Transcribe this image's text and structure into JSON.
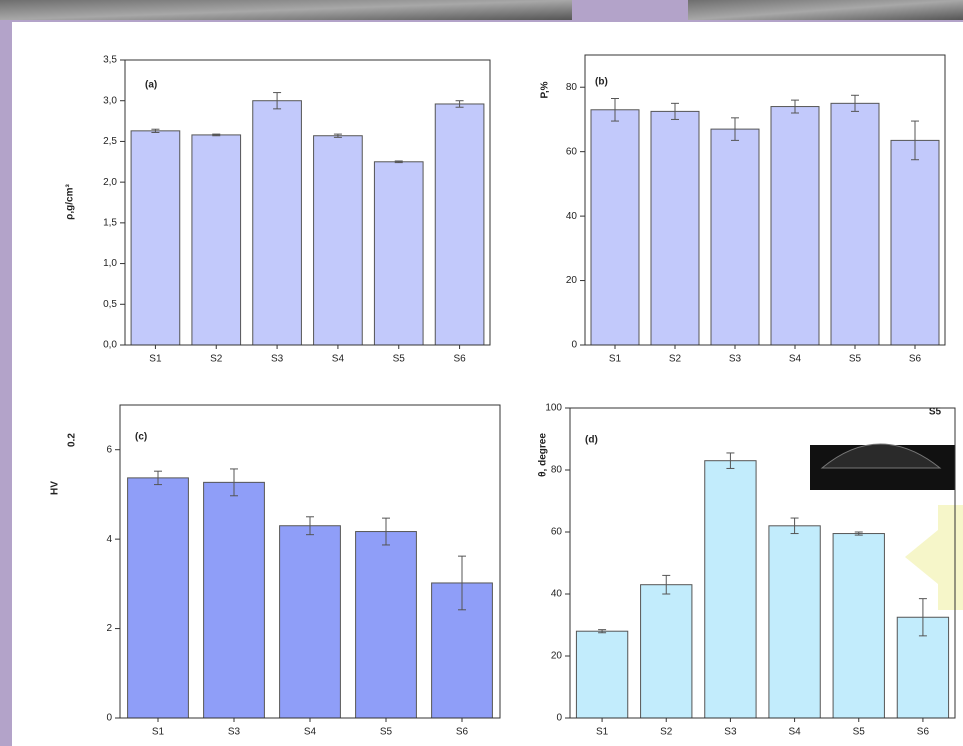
{
  "chart_data": [
    {
      "type": "bar",
      "panel_label": "(a)",
      "ylabel": "ρ,g/cm³",
      "categories": [
        "S1",
        "S2",
        "S3",
        "S4",
        "S5",
        "S6"
      ],
      "values": [
        2.63,
        2.58,
        3.0,
        2.57,
        2.25,
        2.96
      ],
      "errors": [
        0.02,
        0.01,
        0.1,
        0.02,
        0.01,
        0.04
      ],
      "color": "#c2c9fb",
      "ylim": [
        0,
        3.5
      ],
      "yticks": [
        {
          "value": 0,
          "label": "0,0"
        },
        {
          "value": 0.5,
          "label": "0,5"
        },
        {
          "value": 1,
          "label": "1,0"
        },
        {
          "value": 1.5,
          "label": "1,5"
        },
        {
          "value": 2,
          "label": "2,0"
        },
        {
          "value": 2.5,
          "label": "2,5"
        },
        {
          "value": 3,
          "label": "3,0"
        },
        {
          "value": 3.5,
          "label": "3,5"
        }
      ]
    },
    {
      "type": "bar",
      "panel_label": "(b)",
      "ylabel": "P,%",
      "categories": [
        "S1",
        "S2",
        "S3",
        "S4",
        "S5",
        "S6"
      ],
      "values": [
        73,
        72.5,
        67,
        74,
        75,
        63.5
      ],
      "errors": [
        3.5,
        2.5,
        3.5,
        2,
        2.5,
        6
      ],
      "color": "#c2c9fb",
      "ylim": [
        0,
        90
      ],
      "yticks": [
        0,
        20,
        40,
        60,
        80
      ]
    },
    {
      "type": "bar",
      "panel_label": "(c)",
      "ylabel": "HV",
      "ylabel_sub": "0.2",
      "categories": [
        "S1",
        "S3",
        "S4",
        "S5",
        "S6"
      ],
      "values": [
        5.37,
        5.27,
        4.3,
        4.17,
        3.02
      ],
      "errors": [
        0.15,
        0.3,
        0.2,
        0.3,
        0.6
      ],
      "color": "#8f9ef8",
      "ylim": [
        0,
        7
      ],
      "yticks": [
        0,
        2,
        4,
        6
      ]
    },
    {
      "type": "bar",
      "panel_label": "(d)",
      "ylabel": "θ, degree",
      "inset_label": "S5",
      "categories": [
        "S1",
        "S2",
        "S3",
        "S4",
        "S5",
        "S6"
      ],
      "values": [
        28,
        43,
        83,
        62,
        59.5,
        32.5
      ],
      "errors": [
        0.5,
        3,
        2.5,
        2.5,
        0.5,
        6
      ],
      "color": "#c2ecfc",
      "ylim": [
        0,
        100
      ],
      "yticks": [
        0,
        20,
        40,
        60,
        80,
        100
      ]
    }
  ]
}
